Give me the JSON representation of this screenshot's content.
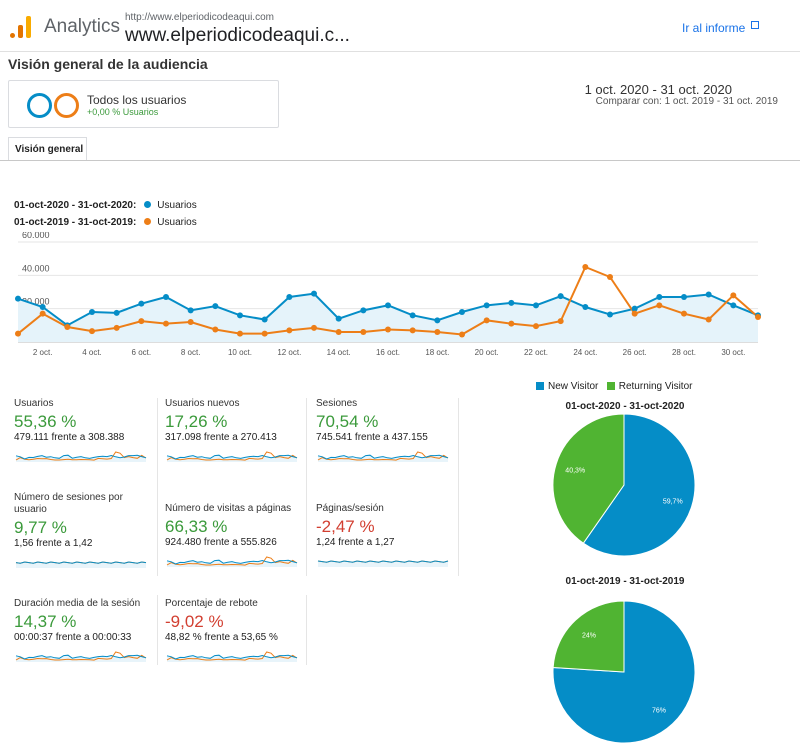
{
  "header": {
    "app_name": "Analytics",
    "site_url": "http://www.elperiodicodeaqui.com",
    "site_name": "www.elperiodicodeaqui.c...",
    "report_link": "Ir al informe"
  },
  "page_title": "Visión general de la audiencia",
  "segment": {
    "title": "Todos los usuarios",
    "subtitle": "+0,00 % Usuarios"
  },
  "date_range": {
    "main": "1 oct. 2020 - 31 oct. 2020",
    "compare": "Comparar con: 1 oct. 2019 - 31 oct. 2019"
  },
  "tab": "Visión general",
  "colors": {
    "current": "#058dc7",
    "previous": "#ed7e17",
    "positive": "#3b9a3b",
    "negative": "#d23f31",
    "new_visitor": "#058dc7",
    "returning_visitor": "#50b432"
  },
  "chart_data": [
    {
      "type": "line",
      "series": [
        {
          "name": "Usuarios",
          "period": "01-oct-2020 - 31-oct-2020:",
          "values": [
            26000,
            21000,
            10000,
            18000,
            17500,
            23000,
            27000,
            19000,
            21500,
            16000,
            13500,
            27000,
            29000,
            14000,
            19000,
            22000,
            16000,
            13000,
            18000,
            22000,
            23500,
            22000,
            27500,
            21000,
            16500,
            20000,
            27000,
            27000,
            28500,
            22000,
            16000
          ]
        },
        {
          "name": "Usuarios",
          "period": "01-oct-2019 - 31-oct-2019:",
          "values": [
            5000,
            17000,
            9000,
            6500,
            8500,
            12500,
            11000,
            12000,
            7500,
            5000,
            5000,
            7000,
            8500,
            6000,
            6000,
            7500,
            7000,
            6000,
            4500,
            13000,
            11000,
            9500,
            12500,
            45000,
            39000,
            17000,
            22000,
            17000,
            13500,
            28000,
            15000
          ]
        }
      ],
      "y_ticks": [
        "60.000",
        "40.000",
        "20.000"
      ],
      "x_ticks": [
        "2 oct.",
        "4 oct.",
        "6 oct.",
        "8 oct.",
        "10 oct.",
        "12 oct.",
        "14 oct.",
        "16 oct.",
        "18 oct.",
        "20 oct.",
        "22 oct.",
        "24 oct.",
        "26 oct.",
        "28 oct.",
        "30 oct."
      ],
      "ylim": [
        0,
        60000
      ]
    },
    {
      "type": "pie",
      "title": "01-oct-2020 - 31-oct-2020",
      "slices": [
        {
          "name": "New Visitor",
          "value": 59.7,
          "label": "59,7%"
        },
        {
          "name": "Returning Visitor",
          "value": 40.3,
          "label": "40,3%"
        }
      ]
    },
    {
      "type": "pie",
      "title": "01-oct-2019 - 31-oct-2019",
      "slices": [
        {
          "name": "New Visitor",
          "value": 76,
          "label": "76%"
        },
        {
          "name": "Returning Visitor",
          "value": 24,
          "label": "24%"
        }
      ]
    }
  ],
  "pie_legend": [
    "New Visitor",
    "Returning Visitor"
  ],
  "metrics": [
    {
      "label": "Usuarios",
      "value": "55,36 %",
      "compare": "479.111 frente a 308.388",
      "trend": "positive"
    },
    {
      "label": "Usuarios nuevos",
      "value": "17,26 %",
      "compare": "317.098 frente a 270.413",
      "trend": "positive"
    },
    {
      "label": "Sesiones",
      "value": "70,54 %",
      "compare": "745.541 frente a 437.155",
      "trend": "positive"
    },
    {
      "label": "Número de sesiones por usuario",
      "value": "9,77 %",
      "compare": "1,56 frente a 1,42",
      "trend": "positive"
    },
    {
      "label": "Número de visitas a páginas",
      "value": "66,33 %",
      "compare": "924.480 frente a 555.826",
      "trend": "positive"
    },
    {
      "label": "Páginas/sesión",
      "value": "-2,47 %",
      "compare": "1,24 frente a 1,27",
      "trend": "negative"
    },
    {
      "label": "Duración media de la sesión",
      "value": "14,37 %",
      "compare": "00:00:37 frente a 00:00:33",
      "trend": "positive"
    },
    {
      "label": "Porcentaje de rebote",
      "value": "-9,02 %",
      "compare": "48,82 % frente a 53,65 %",
      "trend": "negative"
    }
  ]
}
